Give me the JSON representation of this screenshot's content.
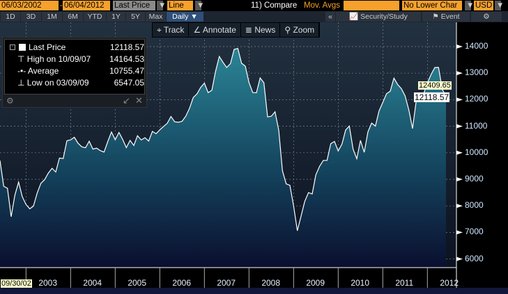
{
  "header": {
    "start_date": "06/03/2002",
    "end_date": "06/04/2012",
    "price_field": "Last Price",
    "chart_type": "Line",
    "compare": "11) Compare",
    "mov_avgs": "Mov. Avgs",
    "lower_chart": "No Lower Char",
    "currency": "USD"
  },
  "periods": [
    "1D",
    "3D",
    "1M",
    "6M",
    "YTD",
    "1Y",
    "5Y",
    "Max"
  ],
  "frequency": "Daily ▼",
  "toolbar2": {
    "collapse": "«",
    "security_study": "Security/Study",
    "event": "Event",
    "settings_icon": "gear-icon"
  },
  "tools": [
    "Track",
    "Annotate",
    "News",
    "Zoom"
  ],
  "legend": {
    "last_label": "Last Price",
    "last_value": "12118.57",
    "high_label": "High on 10/09/07",
    "high_value": "14164.53",
    "avg_label": "Average",
    "avg_value": "10755.47",
    "low_label": "Low on 03/09/09",
    "low_value": "6547.05"
  },
  "price_tags": {
    "prev": "12409.65",
    "last": "12118.57"
  },
  "start_tag": "09/30/02",
  "colors": {
    "accent": "#f7a12c",
    "area_top": "#2b8596",
    "area_bottom": "#0a0f2e",
    "line": "#ffffff"
  },
  "chart_data": {
    "type": "area",
    "x_ticks": [
      "2003",
      "2004",
      "2005",
      "2006",
      "2007",
      "2008",
      "2009",
      "2010",
      "2011",
      "2012"
    ],
    "y_ticks": [
      6000,
      7000,
      8000,
      9000,
      10000,
      11000,
      12000,
      13000,
      14000
    ],
    "ylim": [
      6000,
      14600
    ],
    "xlim": [
      "2002-06",
      "2012-06"
    ],
    "grid": true,
    "series": [
      {
        "x": [
          "2002-06",
          "2002-07",
          "2002-08",
          "2002-09",
          "2002-10",
          "2002-11",
          "2002-12",
          "2003-01",
          "2003-02",
          "2003-03",
          "2003-04",
          "2003-05",
          "2003-06",
          "2003-07",
          "2003-08",
          "2003-09",
          "2003-10",
          "2003-11",
          "2003-12",
          "2004-01",
          "2004-02",
          "2004-03",
          "2004-04",
          "2004-05",
          "2004-06",
          "2004-07",
          "2004-08",
          "2004-09",
          "2004-10",
          "2004-11",
          "2004-12",
          "2005-01",
          "2005-02",
          "2005-03",
          "2005-04",
          "2005-05",
          "2005-06",
          "2005-07",
          "2005-08",
          "2005-09",
          "2005-10",
          "2005-11",
          "2005-12",
          "2006-01",
          "2006-02",
          "2006-03",
          "2006-04",
          "2006-05",
          "2006-06",
          "2006-07",
          "2006-08",
          "2006-09",
          "2006-10",
          "2006-11",
          "2006-12",
          "2007-01",
          "2007-02",
          "2007-03",
          "2007-04",
          "2007-05",
          "2007-06",
          "2007-07",
          "2007-08",
          "2007-09",
          "2007-10",
          "2007-11",
          "2007-12",
          "2008-01",
          "2008-02",
          "2008-03",
          "2008-04",
          "2008-05",
          "2008-06",
          "2008-07",
          "2008-08",
          "2008-09",
          "2008-10",
          "2008-11",
          "2008-12",
          "2009-01",
          "2009-02",
          "2009-03",
          "2009-04",
          "2009-05",
          "2009-06",
          "2009-07",
          "2009-08",
          "2009-09",
          "2009-10",
          "2009-11",
          "2009-12",
          "2010-01",
          "2010-02",
          "2010-03",
          "2010-04",
          "2010-05",
          "2010-06",
          "2010-07",
          "2010-08",
          "2010-09",
          "2010-10",
          "2010-11",
          "2010-12",
          "2011-01",
          "2011-02",
          "2011-03",
          "2011-04",
          "2011-05",
          "2011-06",
          "2011-07",
          "2011-08",
          "2011-09",
          "2011-10",
          "2011-11",
          "2011-12",
          "2012-01",
          "2012-02",
          "2012-03",
          "2012-04",
          "2012-05",
          "2012-06"
        ],
        "y": [
          9710,
          8737,
          8663,
          7592,
          8397,
          8896,
          8342,
          8054,
          7891,
          7992,
          8480,
          8850,
          8985,
          9233,
          9415,
          9275,
          9801,
          9782,
          10454,
          10488,
          10584,
          10358,
          10226,
          10188,
          10435,
          10140,
          10174,
          10080,
          10027,
          10428,
          10783,
          10490,
          10766,
          10504,
          10193,
          10467,
          10275,
          10641,
          10482,
          10569,
          10440,
          10806,
          10718,
          10864,
          10993,
          11109,
          11367,
          11168,
          11150,
          11186,
          11381,
          11679,
          12081,
          12221,
          12463,
          12622,
          12268,
          12354,
          13063,
          13628,
          13409,
          13212,
          13358,
          13896,
          13930,
          13372,
          13265,
          12650,
          12266,
          12263,
          12820,
          12638,
          11350,
          11378,
          11544,
          10851,
          9325,
          8829,
          8776,
          8001,
          7063,
          7609,
          8168,
          8500,
          8447,
          9172,
          9496,
          9712,
          9713,
          10345,
          10428,
          10067,
          10325,
          10857,
          11009,
          10137,
          9774,
          10466,
          10015,
          10788,
          11118,
          11006,
          11578,
          11892,
          12226,
          12320,
          12811,
          12570,
          12414,
          12143,
          11614,
          10913,
          11955,
          12046,
          12218,
          12633,
          12952,
          13212,
          13214,
          12393,
          12118
        ]
      }
    ]
  }
}
